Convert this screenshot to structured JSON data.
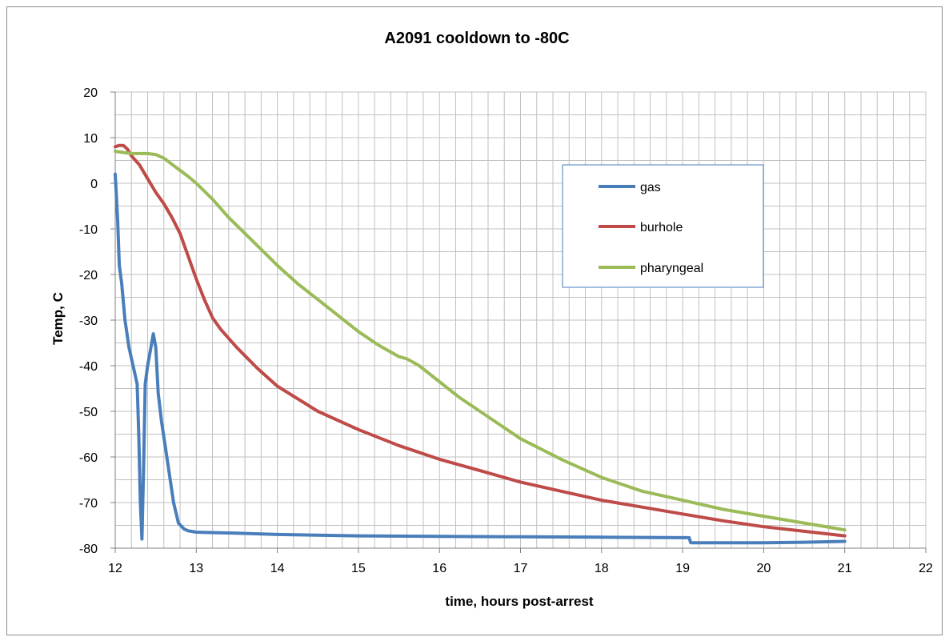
{
  "chart_data": {
    "type": "line",
    "title": "A2091 cooldown to -80C",
    "xlabel": "time, hours post-arrest",
    "ylabel": "Temp, C",
    "xlim": [
      12,
      22
    ],
    "ylim": [
      -80,
      20
    ],
    "x_ticks": [
      12,
      13,
      14,
      15,
      16,
      17,
      18,
      19,
      20,
      21,
      22
    ],
    "y_ticks": [
      20,
      10,
      0,
      -10,
      -20,
      -30,
      -40,
      -50,
      -60,
      -70,
      -80
    ],
    "minor_x_step": 0.2,
    "minor_y_step": 5,
    "grid": true,
    "legend_position": "upper-right",
    "series": [
      {
        "name": "gas",
        "color": "#4a7ebb",
        "points": [
          [
            12.0,
            2
          ],
          [
            12.03,
            -8
          ],
          [
            12.05,
            -18
          ],
          [
            12.08,
            -22
          ],
          [
            12.12,
            -30
          ],
          [
            12.17,
            -36
          ],
          [
            12.22,
            -40
          ],
          [
            12.27,
            -44
          ],
          [
            12.29,
            -55
          ],
          [
            12.31,
            -70
          ],
          [
            12.33,
            -78
          ],
          [
            12.35,
            -62
          ],
          [
            12.37,
            -44
          ],
          [
            12.4,
            -40
          ],
          [
            12.44,
            -36
          ],
          [
            12.47,
            -33
          ],
          [
            12.5,
            -36
          ],
          [
            12.53,
            -46
          ],
          [
            12.57,
            -52
          ],
          [
            12.62,
            -58
          ],
          [
            12.67,
            -64
          ],
          [
            12.72,
            -70
          ],
          [
            12.78,
            -74.5
          ],
          [
            12.85,
            -75.8
          ],
          [
            12.9,
            -76.2
          ],
          [
            13.0,
            -76.5
          ],
          [
            13.5,
            -76.7
          ],
          [
            14.0,
            -77.0
          ],
          [
            15.0,
            -77.3
          ],
          [
            16.0,
            -77.4
          ],
          [
            17.0,
            -77.5
          ],
          [
            18.0,
            -77.6
          ],
          [
            19.0,
            -77.7
          ],
          [
            19.08,
            -77.7
          ],
          [
            19.1,
            -78.8
          ],
          [
            20.0,
            -78.8
          ],
          [
            20.5,
            -78.7
          ],
          [
            21.0,
            -78.5
          ]
        ]
      },
      {
        "name": "burhole",
        "color": "#be4b48",
        "points": [
          [
            12.0,
            8
          ],
          [
            12.05,
            8.3
          ],
          [
            12.1,
            8.3
          ],
          [
            12.15,
            7.5
          ],
          [
            12.2,
            6
          ],
          [
            12.3,
            4
          ],
          [
            12.4,
            1
          ],
          [
            12.5,
            -2
          ],
          [
            12.6,
            -4.5
          ],
          [
            12.7,
            -7.5
          ],
          [
            12.8,
            -11
          ],
          [
            12.9,
            -16
          ],
          [
            13.0,
            -21
          ],
          [
            13.1,
            -25.5
          ],
          [
            13.2,
            -29.5
          ],
          [
            13.3,
            -32
          ],
          [
            13.5,
            -36
          ],
          [
            13.75,
            -40.5
          ],
          [
            14.0,
            -44.5
          ],
          [
            14.5,
            -50
          ],
          [
            15.0,
            -54
          ],
          [
            15.5,
            -57.5
          ],
          [
            16.0,
            -60.5
          ],
          [
            16.5,
            -63
          ],
          [
            17.0,
            -65.5
          ],
          [
            17.5,
            -67.5
          ],
          [
            18.0,
            -69.5
          ],
          [
            18.5,
            -71
          ],
          [
            19.0,
            -72.5
          ],
          [
            19.5,
            -74
          ],
          [
            20.0,
            -75.3
          ],
          [
            20.5,
            -76.3
          ],
          [
            21.0,
            -77.3
          ]
        ]
      },
      {
        "name": "pharyngeal",
        "color": "#9bbb59",
        "points": [
          [
            12.0,
            7
          ],
          [
            12.2,
            6.5
          ],
          [
            12.4,
            6.5
          ],
          [
            12.5,
            6.3
          ],
          [
            12.6,
            5.5
          ],
          [
            12.75,
            3.5
          ],
          [
            12.9,
            1.5
          ],
          [
            13.0,
            0
          ],
          [
            13.2,
            -3.5
          ],
          [
            13.4,
            -7.5
          ],
          [
            13.6,
            -11
          ],
          [
            13.8,
            -14.5
          ],
          [
            14.0,
            -18
          ],
          [
            14.25,
            -22
          ],
          [
            14.5,
            -25.5
          ],
          [
            14.75,
            -29
          ],
          [
            15.0,
            -32.5
          ],
          [
            15.25,
            -35.5
          ],
          [
            15.5,
            -38
          ],
          [
            15.6,
            -38.5
          ],
          [
            15.75,
            -40
          ],
          [
            16.0,
            -43.5
          ],
          [
            16.25,
            -47
          ],
          [
            16.5,
            -50
          ],
          [
            16.75,
            -53
          ],
          [
            17.0,
            -56
          ],
          [
            17.5,
            -60.5
          ],
          [
            18.0,
            -64.5
          ],
          [
            18.5,
            -67.5
          ],
          [
            19.0,
            -69.5
          ],
          [
            19.5,
            -71.5
          ],
          [
            20.0,
            -73
          ],
          [
            20.5,
            -74.5
          ],
          [
            21.0,
            -76
          ]
        ]
      }
    ]
  }
}
